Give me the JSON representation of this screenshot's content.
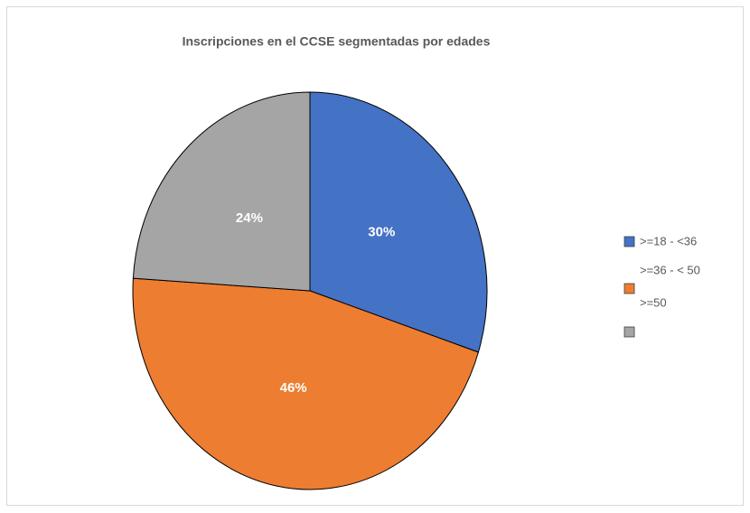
{
  "chart_data": {
    "type": "pie",
    "title": "Inscripciones en el CCSE segmentadas por edades",
    "categories": [
      ">=18 - <36",
      ">=36 - < 50",
      ">=50"
    ],
    "values": [
      30,
      46,
      24
    ],
    "value_labels": [
      "30%",
      "46%",
      "24%"
    ],
    "colors": [
      "#4472c4",
      "#ed7d31",
      "#a5a5a5"
    ],
    "legend": "right"
  }
}
